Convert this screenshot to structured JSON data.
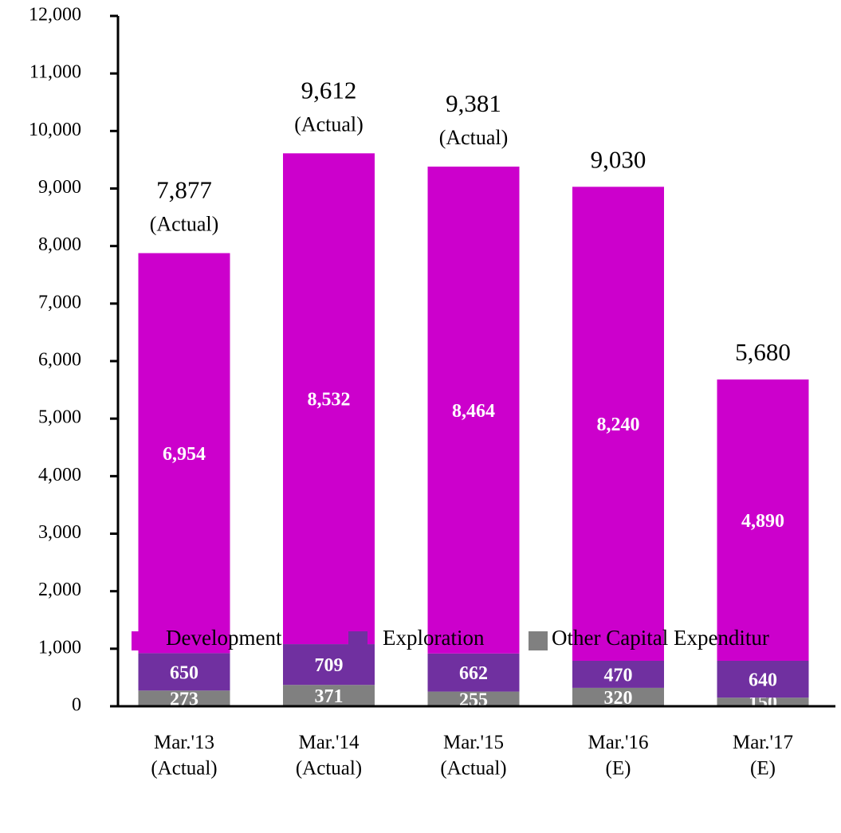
{
  "chart_data": {
    "type": "stacked_bar",
    "categories": [
      "Mar.'13\n(Actual)",
      "Mar.'14\n(Actual)",
      "Mar.'15\n(Actual)",
      "Mar.'16\n(E)",
      "Mar.'17\n(E)"
    ],
    "series": [
      {
        "name": "Other Capital Expenditur",
        "color": "#808080",
        "values": [
          273,
          371,
          255,
          320,
          150
        ]
      },
      {
        "name": "Exploration",
        "color": "#7030a0",
        "values": [
          650,
          709,
          662,
          470,
          640
        ]
      },
      {
        "name": "Development",
        "color": "#cc00cc",
        "values": [
          6954,
          8532,
          8464,
          8240,
          4890
        ],
        "value_labels": [
          "6,954",
          "8,532",
          "8,464",
          "8,240",
          "4,890"
        ]
      }
    ],
    "legend_order": [
      2,
      1,
      0
    ],
    "totals": [
      7877,
      9612,
      9381,
      9030,
      5680
    ],
    "total_labels": [
      "7,877",
      "9,612",
      "9,381",
      "9,030",
      "5,680"
    ],
    "total_notes": [
      "(Actual)",
      "(Actual)",
      "(Actual)",
      null,
      null
    ],
    "ylim": [
      0,
      12000
    ],
    "yticks": [
      0,
      {
        "value": 1000,
        "label": "1,000"
      },
      {
        "value": 2000,
        "label": "2,000"
      },
      {
        "value": 3000,
        "label": "3,000"
      },
      {
        "value": 4000,
        "label": "4,000"
      },
      {
        "value": 5000,
        "label": "5,000"
      },
      {
        "value": 6000,
        "label": "6,000"
      },
      {
        "value": 7000,
        "label": "7,000"
      },
      {
        "value": 8000,
        "label": "8,000"
      },
      {
        "value": 9000,
        "label": "9,000"
      },
      {
        "value": 10000,
        "label": "10,000"
      },
      {
        "value": 11000,
        "label": "11,000"
      },
      {
        "value": 12000,
        "label": "12,000"
      }
    ],
    "legend": "bottom"
  }
}
